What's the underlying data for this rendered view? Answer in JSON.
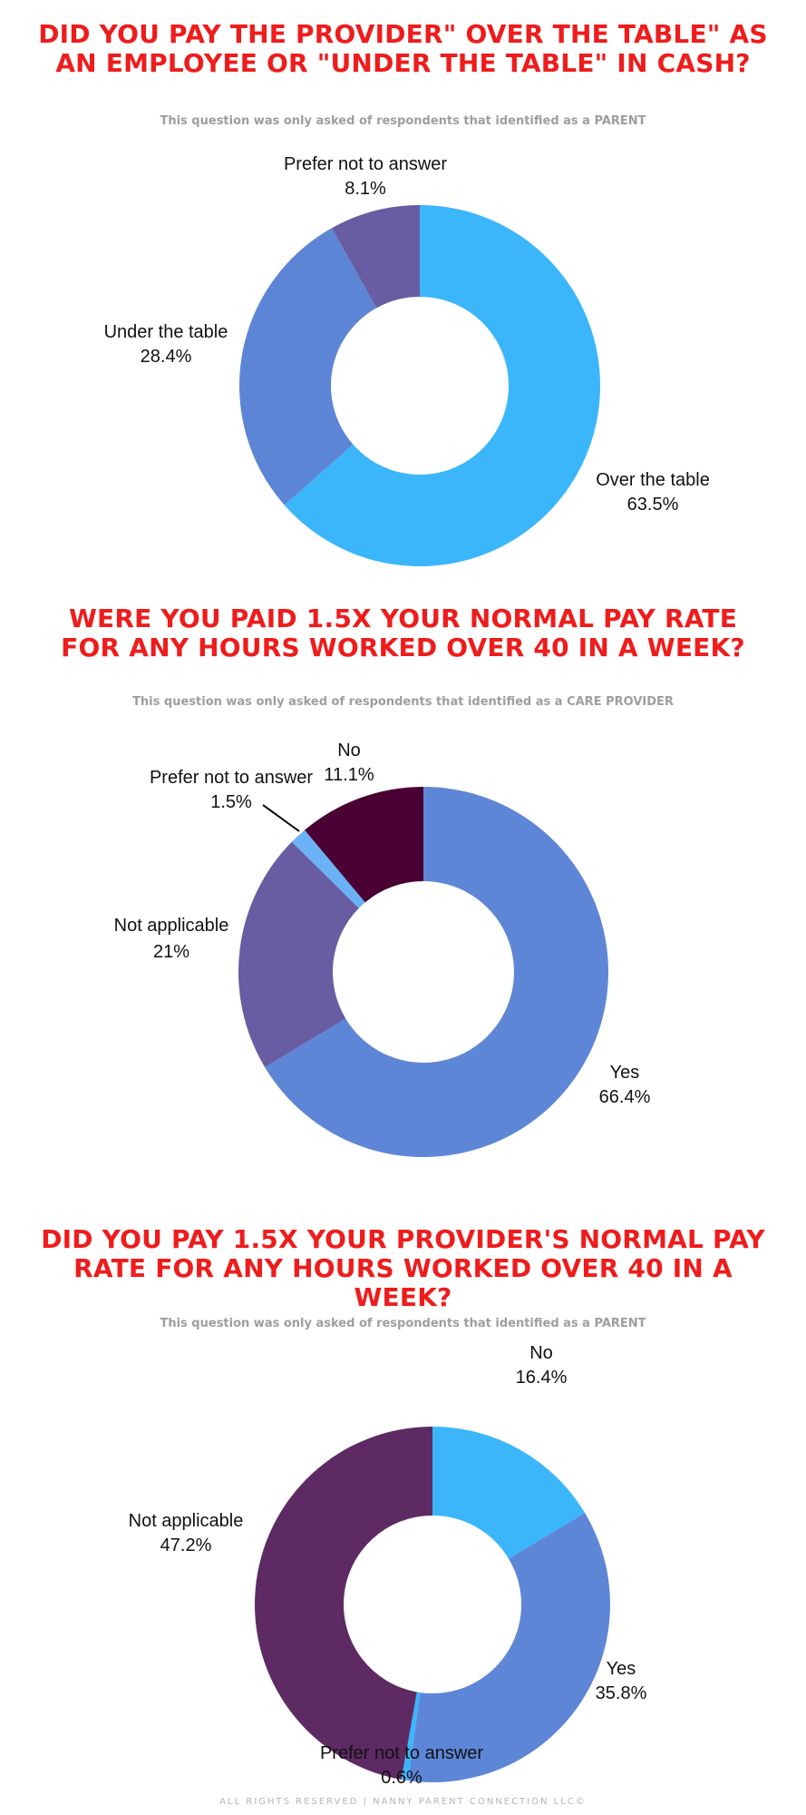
{
  "footer": "ALL RIGHTS RESERVED | NANNY PARENT CONNECTION LLC©",
  "chart_data": [
    {
      "type": "pie",
      "title": "DID YOU PAY THE PROVIDER\" OVER THE TABLE\" AS AN EMPLOYEE OR \"UNDER THE TABLE\" IN CASH?",
      "subtitle": "This question was only asked of respondents that identified as a PARENT",
      "slices": [
        {
          "label": "Over the table",
          "value": 63.5,
          "display": "63.5%",
          "color": "#3bb6fb"
        },
        {
          "label": "Under the table",
          "value": 28.4,
          "display": "28.4%",
          "color": "#5d85d6"
        },
        {
          "label": "Prefer not to answer",
          "value": 8.1,
          "display": "8.1%",
          "color": "#685ca2"
        }
      ]
    },
    {
      "type": "pie",
      "title": "WERE YOU PAID 1.5X YOUR NORMAL PAY RATE FOR ANY HOURS WORKED OVER 40 IN A WEEK?",
      "subtitle": "This question was only asked of respondents that identified as a CARE PROVIDER",
      "slices": [
        {
          "label": "Yes",
          "value": 66.4,
          "display": "66.4%",
          "color": "#5e86d7"
        },
        {
          "label": "Not applicable",
          "value": 21,
          "display": "21%",
          "color": "#685ca2"
        },
        {
          "label": "Prefer not to answer",
          "value": 1.5,
          "display": "1.5%",
          "color": "#6bb1f5"
        },
        {
          "label": "No",
          "value": 11.1,
          "display": "11.1%",
          "color": "#4a0033"
        }
      ]
    },
    {
      "type": "pie",
      "title": "DID YOU PAY 1.5X YOUR PROVIDER'S NORMAL PAY RATE FOR ANY HOURS WORKED OVER 40 IN A WEEK?",
      "subtitle": "This question was only asked of respondents that identified as a PARENT",
      "slices": [
        {
          "label": "No",
          "value": 16.4,
          "display": "16.4%",
          "color": "#3bb6fb"
        },
        {
          "label": "Yes",
          "value": 35.8,
          "display": "35.8%",
          "color": "#5d86d7"
        },
        {
          "label": "Prefer not to answer",
          "value": 0.6,
          "display": "0.6%",
          "color": "#3bb6fb"
        },
        {
          "label": "Not applicable",
          "value": 47.2,
          "display": "47.2%",
          "color": "#5e2a64"
        }
      ]
    }
  ]
}
